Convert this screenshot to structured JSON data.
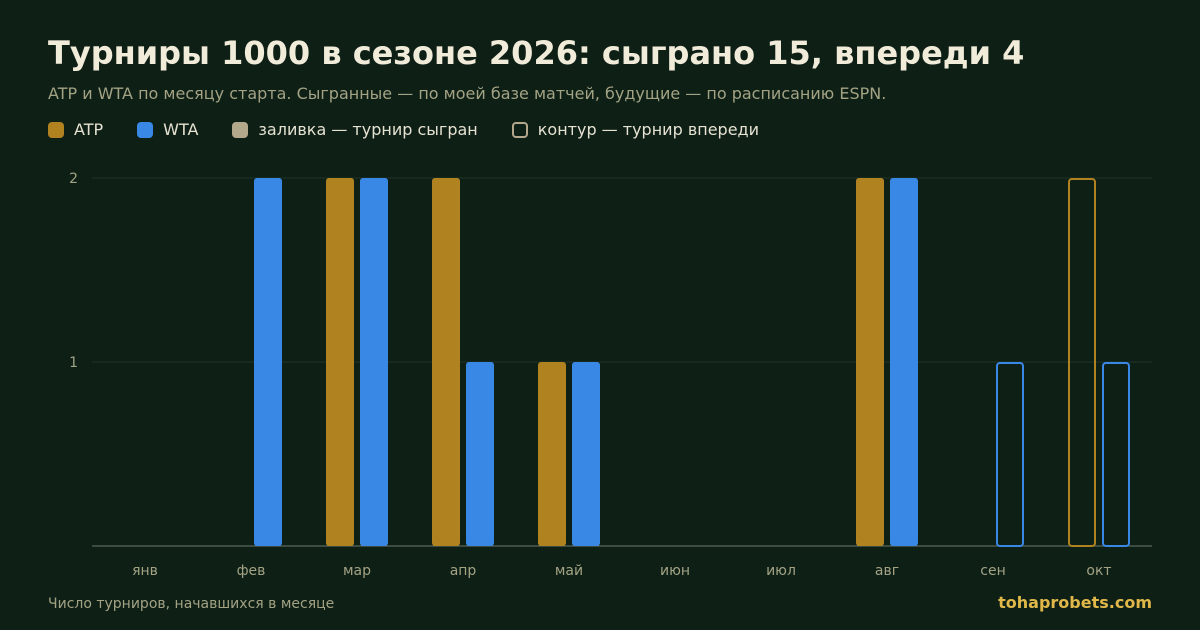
{
  "title": "Турниры 1000 в сезоне 2026: сыграно 15, впереди 4",
  "subtitle": "ATP и WTA по месяцу старта. Сыгранные — по моей базе матчей, будущие — по расписанию ESPN.",
  "legend": {
    "atp": "ATP",
    "wta": "WTA",
    "played": "заливка — турнир сыгран",
    "upcoming": "контур — турнир впереди"
  },
  "colors": {
    "atp": "#b08220",
    "wta": "#3a88e6",
    "played_swatch": "#b3a78c",
    "background": "#0e1f16",
    "grid": "#22352a",
    "axis": "#6b7a6f",
    "tick": "#a3a384"
  },
  "footnote": "Число турниров, начавшихся в месяце",
  "brand": "tohaprobets.com",
  "chart_data": {
    "type": "bar",
    "categories": [
      "янв",
      "фев",
      "мар",
      "апр",
      "май",
      "июн",
      "июл",
      "авг",
      "сен",
      "окт"
    ],
    "y_ticks": [
      1,
      2
    ],
    "ylim": [
      0,
      2
    ],
    "grid": true,
    "legend_position": "top-left",
    "series": [
      {
        "name": "ATP",
        "color": "#b08220",
        "values": [
          0,
          0,
          2,
          2,
          1,
          0,
          0,
          2,
          0,
          2
        ],
        "status": [
          "played",
          "played",
          "played",
          "played",
          "played",
          "played",
          "played",
          "played",
          "played",
          "upcoming"
        ]
      },
      {
        "name": "WTA",
        "color": "#3a88e6",
        "values": [
          0,
          2,
          2,
          1,
          1,
          0,
          0,
          2,
          1,
          1
        ],
        "status": [
          "played",
          "played",
          "played",
          "played",
          "played",
          "played",
          "played",
          "played",
          "upcoming",
          "upcoming"
        ]
      }
    ]
  }
}
